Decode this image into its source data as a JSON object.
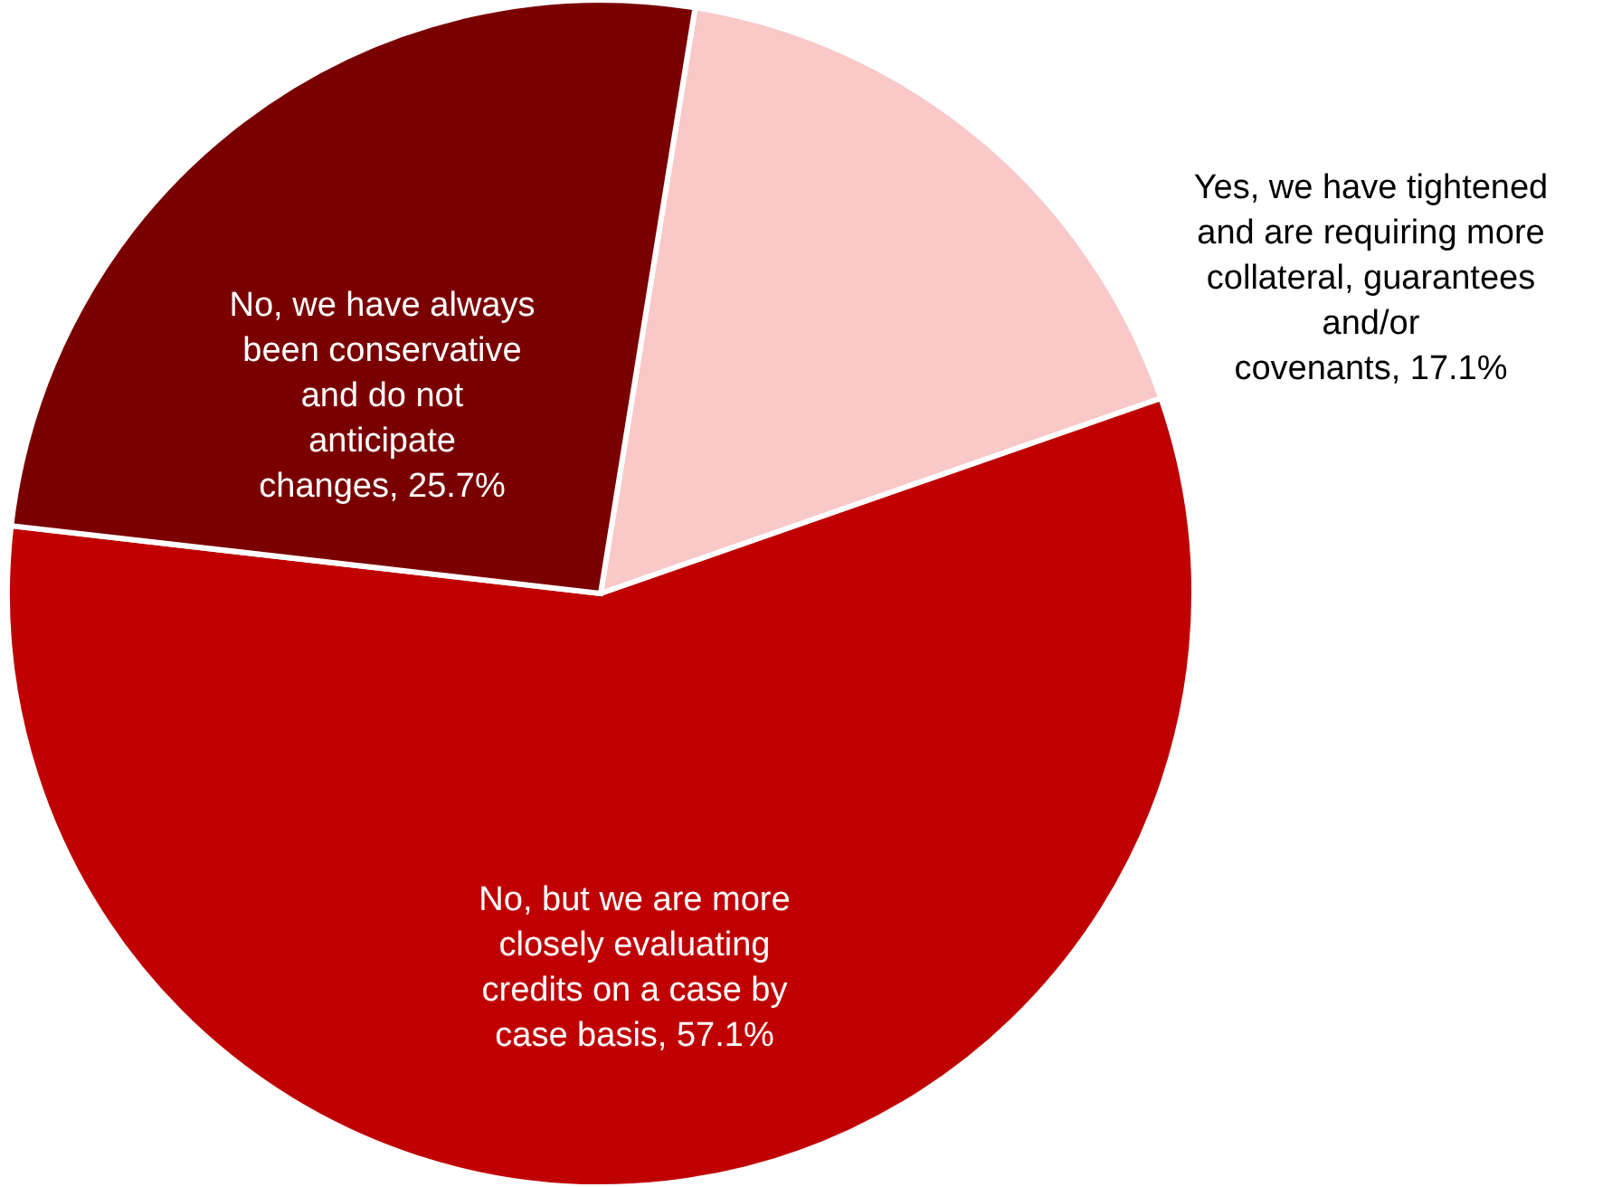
{
  "chart_data": {
    "type": "pie",
    "categories": [
      "Yes, we have tightened and are requiring more collateral, guarantees and/or covenants",
      "No, but we are more closely evaluating credits on a case by case basis",
      "No, we have always been conservative and do not anticipate changes"
    ],
    "values": [
      17.1,
      57.1,
      25.7
    ],
    "value_labels": [
      "17.1%",
      "57.1%",
      "25.7%"
    ],
    "colors": [
      "#f9c8c8",
      "#c00000",
      "#7a0000"
    ]
  }
}
